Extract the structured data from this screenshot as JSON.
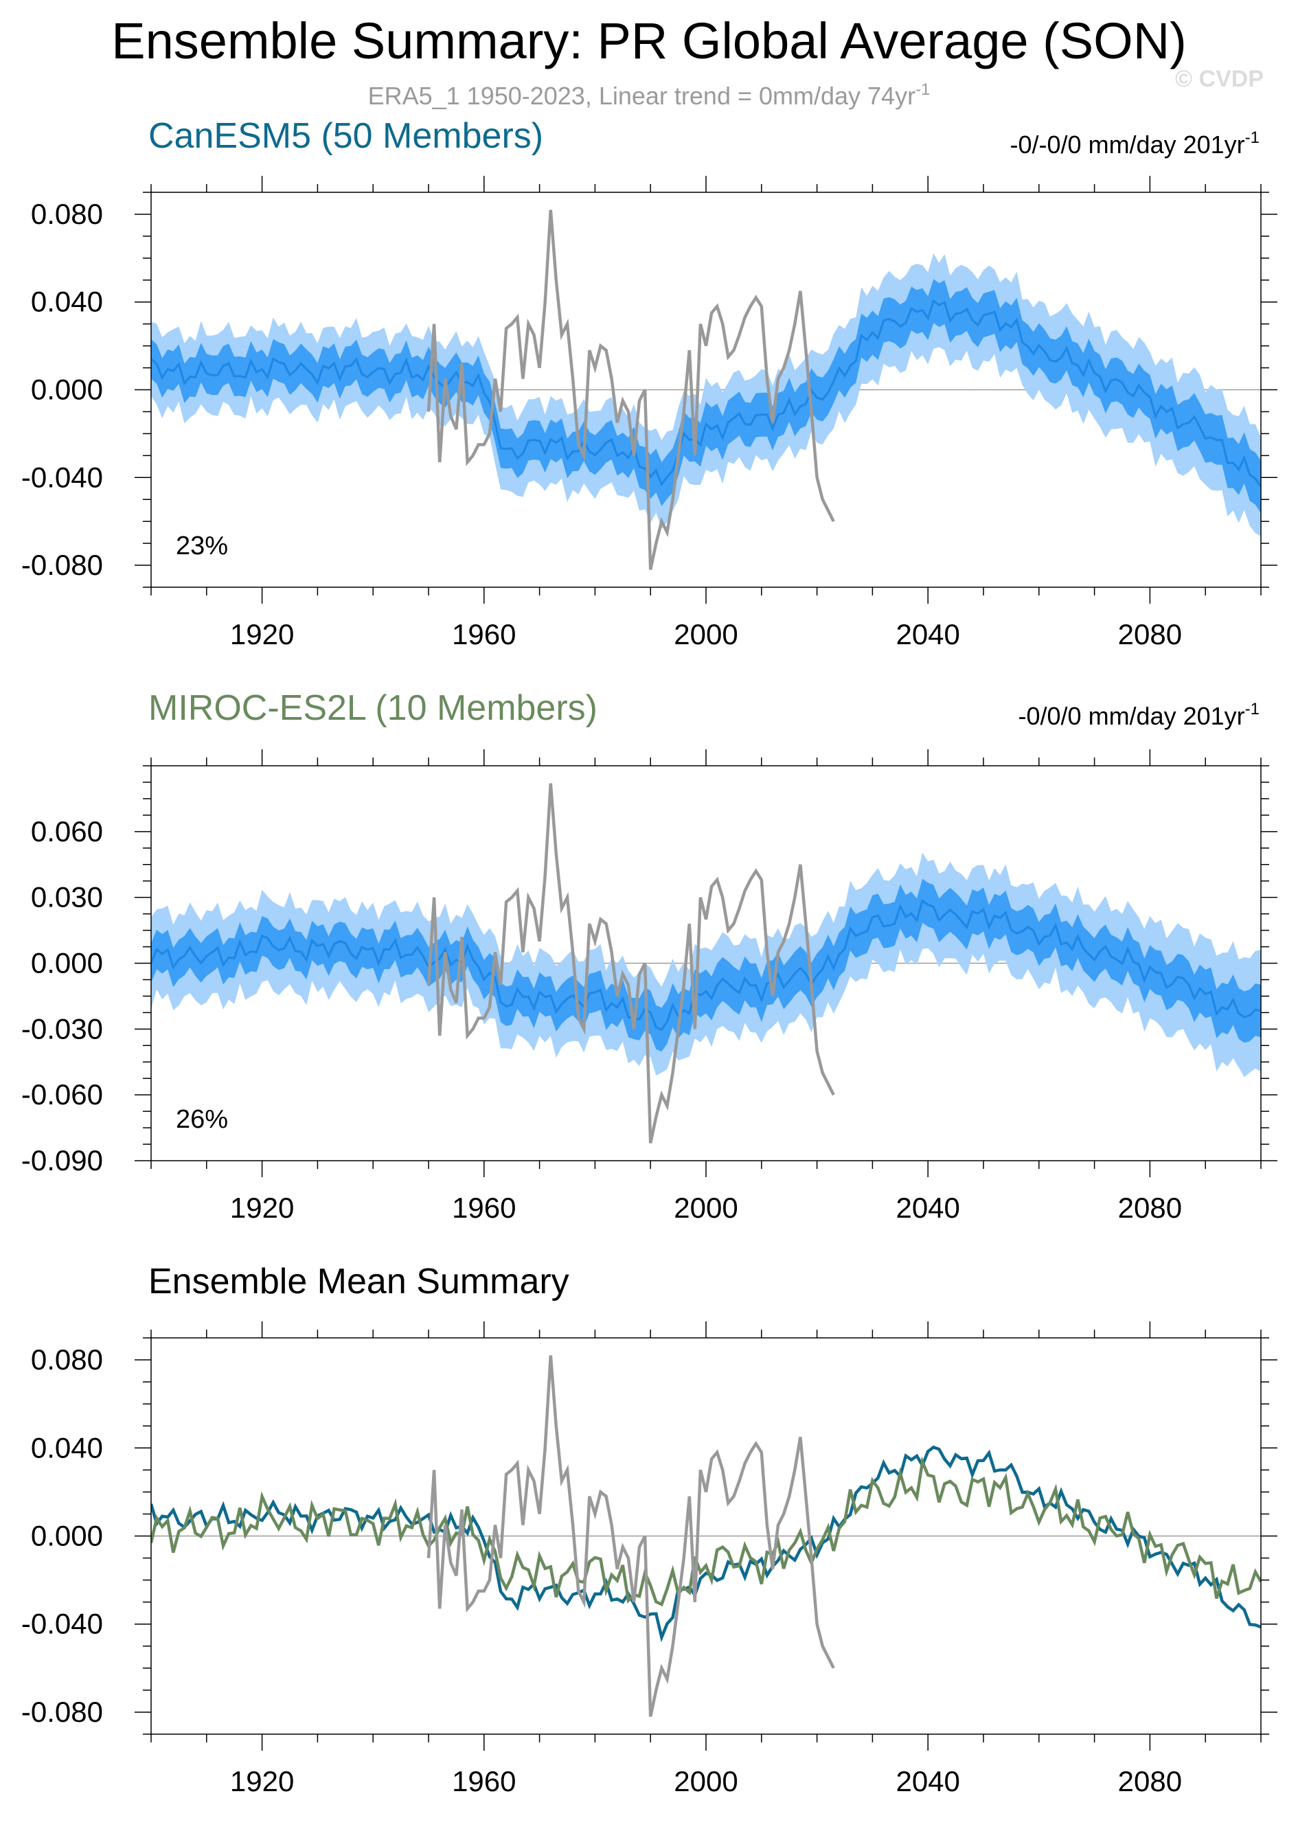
{
  "title": "Ensemble Summary: PR Global Average (SON)",
  "subtitle": "ERA5_1 1950-2023, Linear trend = 0mm/day 74yr",
  "subtitle_sup": "-1",
  "watermark": "© CVDP",
  "colors": {
    "canesm5": "#0E6A8F",
    "miroc": "#6A8A5E",
    "obs": "#999999",
    "band_outer": "#A6D2FB",
    "band_inner": "#3D9FF5",
    "ens_mean_line": "#1E87E6"
  },
  "chart_data": [
    {
      "type": "line",
      "title": "CanESM5 (50 Members)",
      "right_label": "-0/-0/0 mm/day 201yr",
      "right_label_sup": "-1",
      "percent_label": "23%",
      "xlim": [
        1900,
        2100
      ],
      "ylim": [
        -0.09,
        0.09
      ],
      "x_ticks": [
        1920,
        1960,
        2000,
        2040,
        2080
      ],
      "y_ticks": [
        "0.080",
        "0.040",
        "0.000",
        "-0.040",
        "-0.080"
      ],
      "y_tick_values": [
        0.08,
        0.04,
        0,
        -0.04,
        -0.08
      ],
      "ensemble_mean": {
        "x": [
          1900,
          1910,
          1920,
          1930,
          1940,
          1950,
          1958,
          1962,
          1963,
          1970,
          1980,
          1985,
          1990,
          1992,
          1996,
          2000,
          2010,
          2020,
          2025,
          2030,
          2035,
          2040,
          2045,
          2050,
          2055,
          2060,
          2070,
          2080,
          2090,
          2100
        ],
        "y": [
          0.01,
          0.007,
          0.01,
          0.009,
          0.009,
          0.006,
          0.004,
          -0.01,
          -0.028,
          -0.025,
          -0.027,
          -0.028,
          -0.035,
          -0.045,
          -0.025,
          -0.018,
          -0.013,
          -0.005,
          0.01,
          0.025,
          0.033,
          0.037,
          0.035,
          0.034,
          0.028,
          0.018,
          0.008,
          -0.005,
          -0.02,
          -0.042
        ]
      },
      "spread_inner": {
        "x": [
          1900,
          1910,
          1920,
          1930,
          1940,
          1950,
          1958,
          1962,
          1963,
          1970,
          1980,
          1985,
          1990,
          1992,
          1996,
          2000,
          2010,
          2020,
          2025,
          2030,
          2035,
          2040,
          2045,
          2050,
          2055,
          2060,
          2070,
          2080,
          2090,
          2100
        ],
        "half_width": [
          0.009,
          0.009,
          0.009,
          0.009,
          0.009,
          0.009,
          0.009,
          0.009,
          0.009,
          0.009,
          0.009,
          0.009,
          0.01,
          0.01,
          0.01,
          0.01,
          0.01,
          0.01,
          0.01,
          0.01,
          0.01,
          0.01,
          0.01,
          0.01,
          0.01,
          0.01,
          0.01,
          0.01,
          0.011,
          0.012
        ]
      },
      "spread_outer": {
        "x": [
          1900,
          1910,
          1920,
          1930,
          1940,
          1950,
          1958,
          1962,
          1963,
          1970,
          1980,
          1985,
          1990,
          1992,
          1996,
          2000,
          2010,
          2020,
          2025,
          2030,
          2035,
          2040,
          2045,
          2050,
          2055,
          2060,
          2070,
          2080,
          2090,
          2100
        ],
        "half_width": [
          0.016,
          0.016,
          0.016,
          0.016,
          0.016,
          0.016,
          0.016,
          0.016,
          0.017,
          0.017,
          0.017,
          0.017,
          0.018,
          0.018,
          0.018,
          0.018,
          0.018,
          0.018,
          0.019,
          0.019,
          0.019,
          0.019,
          0.019,
          0.019,
          0.019,
          0.019,
          0.02,
          0.02,
          0.021,
          0.022
        ]
      }
    },
    {
      "type": "line",
      "title": "MIROC-ES2L (10 Members)",
      "right_label": "-0/0/0 mm/day 201yr",
      "right_label_sup": "-1",
      "percent_label": "26%",
      "xlim": [
        1900,
        2100
      ],
      "ylim": [
        -0.09,
        0.09
      ],
      "x_ticks": [
        1920,
        1960,
        2000,
        2040,
        2080
      ],
      "y_ticks": [
        "0.060",
        "0.030",
        "0.000",
        "-0.030",
        "-0.060",
        "-0.090"
      ],
      "y_tick_values": [
        0.06,
        0.03,
        0,
        -0.03,
        -0.06,
        -0.09
      ],
      "ensemble_mean": {
        "x": [
          1900,
          1910,
          1920,
          1930,
          1940,
          1950,
          1958,
          1962,
          1963,
          1970,
          1980,
          1985,
          1990,
          1992,
          1996,
          2000,
          2010,
          2020,
          2025,
          2030,
          2035,
          2040,
          2045,
          2050,
          2055,
          2060,
          2070,
          2080,
          2090,
          2100
        ],
        "y": [
          0.005,
          0.002,
          0.008,
          0.007,
          0.006,
          0.003,
          0.001,
          -0.008,
          -0.016,
          -0.017,
          -0.016,
          -0.02,
          -0.025,
          -0.03,
          -0.02,
          -0.012,
          -0.01,
          -0.005,
          0.008,
          0.018,
          0.022,
          0.024,
          0.022,
          0.021,
          0.018,
          0.013,
          0.006,
          -0.003,
          -0.015,
          -0.026
        ]
      },
      "spread_inner": {
        "x": [
          1900,
          1910,
          1920,
          1930,
          1940,
          1950,
          1958,
          1962,
          1963,
          1970,
          1980,
          1985,
          1990,
          1992,
          1996,
          2000,
          2010,
          2020,
          2025,
          2030,
          2035,
          2040,
          2045,
          2050,
          2055,
          2060,
          2070,
          2080,
          2090,
          2100
        ],
        "half_width": [
          0.009,
          0.009,
          0.009,
          0.009,
          0.009,
          0.009,
          0.009,
          0.009,
          0.009,
          0.009,
          0.009,
          0.009,
          0.01,
          0.01,
          0.01,
          0.01,
          0.01,
          0.01,
          0.01,
          0.01,
          0.01,
          0.01,
          0.01,
          0.01,
          0.01,
          0.01,
          0.01,
          0.01,
          0.011,
          0.012
        ]
      },
      "spread_outer": {
        "x": [
          1900,
          1910,
          1920,
          1930,
          1940,
          1950,
          1958,
          1962,
          1963,
          1970,
          1980,
          1985,
          1990,
          1992,
          1996,
          2000,
          2010,
          2020,
          2025,
          2030,
          2035,
          2040,
          2045,
          2050,
          2055,
          2060,
          2070,
          2080,
          2090,
          2100
        ],
        "half_width": [
          0.018,
          0.018,
          0.018,
          0.018,
          0.018,
          0.018,
          0.018,
          0.018,
          0.018,
          0.018,
          0.018,
          0.018,
          0.019,
          0.019,
          0.019,
          0.019,
          0.019,
          0.019,
          0.019,
          0.019,
          0.019,
          0.019,
          0.019,
          0.019,
          0.019,
          0.019,
          0.02,
          0.021,
          0.023,
          0.025
        ]
      }
    },
    {
      "type": "line",
      "title": "Ensemble Mean Summary",
      "xlim": [
        1900,
        2100
      ],
      "ylim": [
        -0.09,
        0.09
      ],
      "x_ticks": [
        1920,
        1960,
        2000,
        2040,
        2080
      ],
      "y_ticks": [
        "0.080",
        "0.040",
        "0.000",
        "-0.040",
        "-0.080"
      ],
      "y_tick_values": [
        0.08,
        0.04,
        0,
        -0.04,
        -0.08
      ],
      "series": [
        {
          "key": "canesm5",
          "x": [
            1900,
            1910,
            1920,
            1930,
            1940,
            1950,
            1958,
            1962,
            1963,
            1970,
            1980,
            1985,
            1990,
            1992,
            1996,
            2000,
            2010,
            2020,
            2025,
            2030,
            2035,
            2040,
            2045,
            2050,
            2055,
            2060,
            2070,
            2080,
            2090,
            2100
          ],
          "y": [
            0.01,
            0.007,
            0.01,
            0.009,
            0.009,
            0.006,
            0.004,
            -0.01,
            -0.028,
            -0.025,
            -0.027,
            -0.028,
            -0.035,
            -0.045,
            -0.025,
            -0.018,
            -0.013,
            -0.005,
            0.01,
            0.025,
            0.033,
            0.037,
            0.035,
            0.034,
            0.028,
            0.018,
            0.008,
            -0.005,
            -0.02,
            -0.042
          ]
        },
        {
          "key": "miroc",
          "x": [
            1900,
            1910,
            1920,
            1930,
            1940,
            1950,
            1958,
            1962,
            1963,
            1970,
            1980,
            1985,
            1990,
            1992,
            1996,
            2000,
            2010,
            2020,
            2025,
            2030,
            2035,
            2040,
            2045,
            2050,
            2055,
            2060,
            2070,
            2080,
            2090,
            2100
          ],
          "y": [
            0.005,
            0.002,
            0.008,
            0.007,
            0.006,
            0.003,
            0.001,
            -0.008,
            -0.016,
            -0.017,
            -0.016,
            -0.02,
            -0.025,
            -0.03,
            -0.02,
            -0.012,
            -0.01,
            -0.005,
            0.008,
            0.018,
            0.022,
            0.024,
            0.022,
            0.021,
            0.018,
            0.013,
            0.006,
            -0.003,
            -0.015,
            -0.026
          ]
        }
      ]
    }
  ],
  "observed": {
    "x": [
      1950,
      1951,
      1952,
      1953,
      1954,
      1955,
      1956,
      1957,
      1958,
      1959,
      1960,
      1961,
      1962,
      1963,
      1964,
      1965,
      1966,
      1967,
      1968,
      1969,
      1970,
      1971,
      1972,
      1973,
      1974,
      1975,
      1976,
      1977,
      1978,
      1979,
      1980,
      1981,
      1982,
      1983,
      1984,
      1985,
      1986,
      1987,
      1988,
      1989,
      1990,
      1991,
      1992,
      1993,
      1994,
      1995,
      1996,
      1997,
      1998,
      1999,
      2000,
      2001,
      2002,
      2003,
      2004,
      2005,
      2006,
      2007,
      2008,
      2009,
      2010,
      2011,
      2012,
      2013,
      2014,
      2015,
      2016,
      2017,
      2018,
      2019,
      2020,
      2021,
      2022,
      2023
    ],
    "y": [
      -0.01,
      0.03,
      -0.033,
      0.005,
      -0.012,
      -0.018,
      0.012,
      -0.033,
      -0.03,
      -0.025,
      -0.025,
      -0.02,
      0.005,
      -0.01,
      0.028,
      0.03,
      0.033,
      0.005,
      0.03,
      0.025,
      0.01,
      0.04,
      0.082,
      0.05,
      0.025,
      0.03,
      0.005,
      -0.025,
      -0.03,
      0.018,
      0.01,
      0.02,
      0.018,
      0.005,
      -0.015,
      -0.005,
      -0.01,
      -0.03,
      -0.005,
      0.0,
      -0.082,
      -0.07,
      -0.06,
      -0.065,
      -0.05,
      -0.03,
      -0.01,
      0.018,
      -0.03,
      0.03,
      0.02,
      0.035,
      0.038,
      0.03,
      0.015,
      0.018,
      0.025,
      0.033,
      0.038,
      0.042,
      0.038,
      0.005,
      -0.015,
      0.005,
      0.01,
      0.018,
      0.03,
      0.045,
      0.018,
      -0.01,
      -0.04,
      -0.05,
      -0.055,
      -0.06
    ]
  }
}
